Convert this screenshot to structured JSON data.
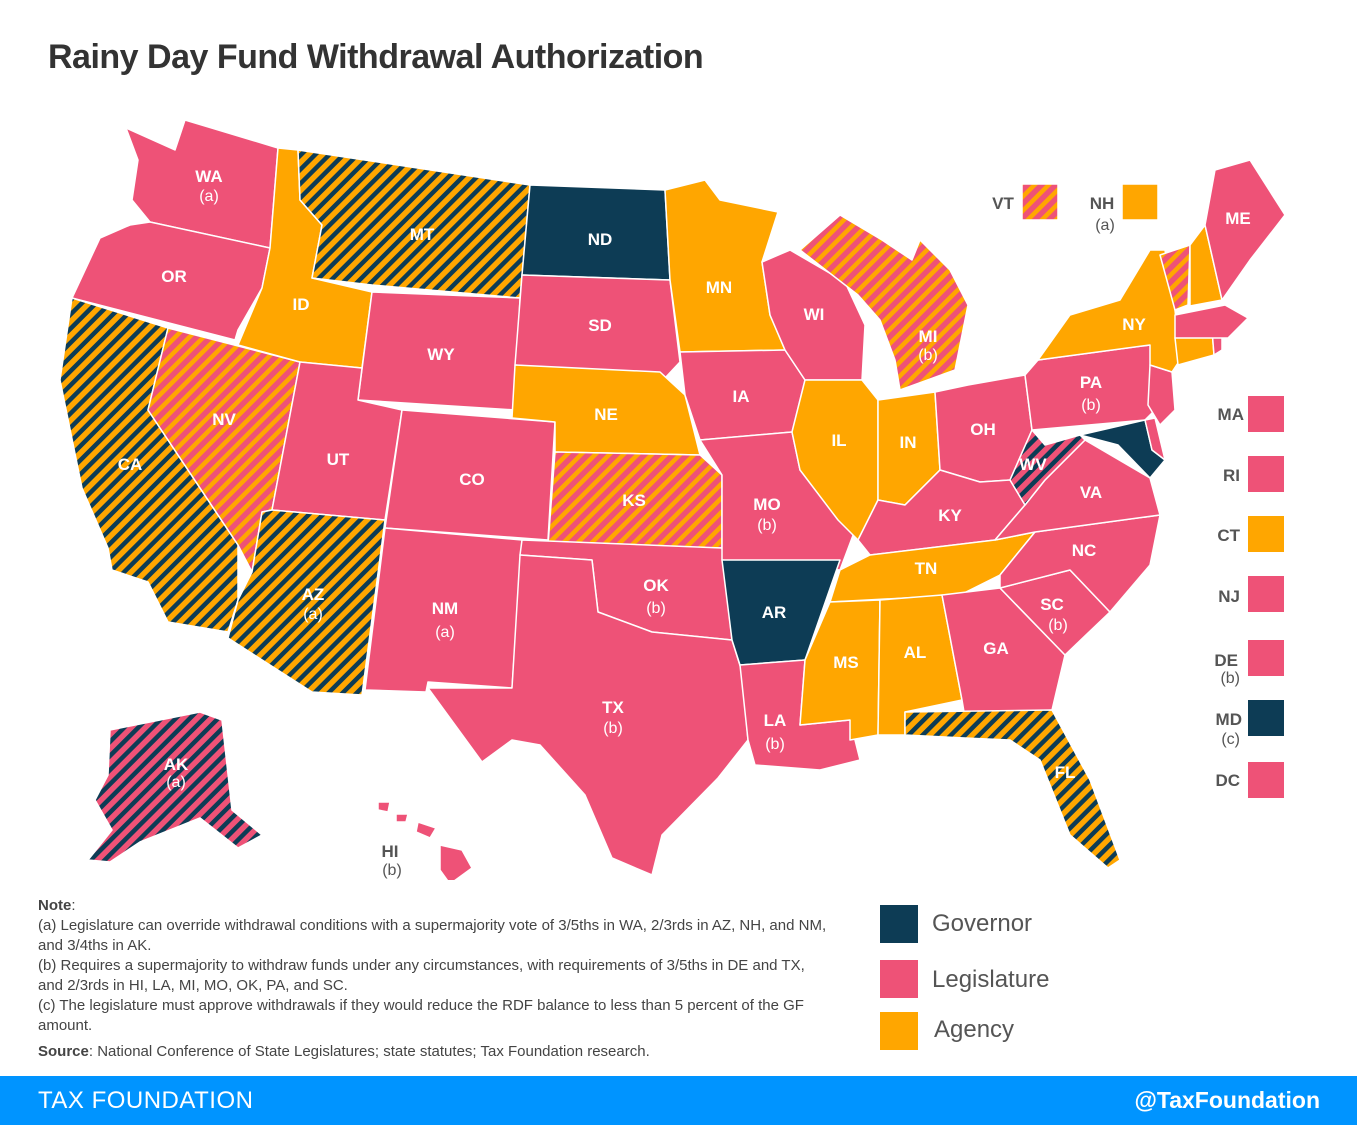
{
  "title": "Rainy Day Fund Withdrawal Authorization",
  "colors": {
    "governor": "#0d3c55",
    "legislature": "#ee5277",
    "agency": "#ffa600",
    "agency_legislature_stripe": "#ffa600/#ee5277",
    "governor_agency_stripe": "#0d3c55/#ffa600",
    "governor_legislature_stripe": "#0d3c55/#ee5277",
    "footer": "#0094ff"
  },
  "map_states": [
    {
      "code": "WA",
      "note": "(a)",
      "category": "legislature"
    },
    {
      "code": "OR",
      "note": "",
      "category": "legislature"
    },
    {
      "code": "CA",
      "note": "",
      "category": "governor-agency"
    },
    {
      "code": "NV",
      "note": "",
      "category": "agency-legislature"
    },
    {
      "code": "ID",
      "note": "",
      "category": "agency"
    },
    {
      "code": "MT",
      "note": "",
      "category": "governor-agency"
    },
    {
      "code": "WY",
      "note": "",
      "category": "legislature"
    },
    {
      "code": "UT",
      "note": "",
      "category": "legislature"
    },
    {
      "code": "AZ",
      "note": "(a)",
      "category": "governor-agency"
    },
    {
      "code": "CO",
      "note": "",
      "category": "legislature"
    },
    {
      "code": "NM",
      "note": "(a)",
      "category": "legislature"
    },
    {
      "code": "ND",
      "note": "",
      "category": "governor"
    },
    {
      "code": "SD",
      "note": "",
      "category": "legislature"
    },
    {
      "code": "NE",
      "note": "",
      "category": "agency"
    },
    {
      "code": "KS",
      "note": "",
      "category": "agency-legislature"
    },
    {
      "code": "OK",
      "note": "(b)",
      "category": "legislature"
    },
    {
      "code": "TX",
      "note": "(b)",
      "category": "legislature"
    },
    {
      "code": "MN",
      "note": "",
      "category": "agency"
    },
    {
      "code": "IA",
      "note": "",
      "category": "legislature"
    },
    {
      "code": "MO",
      "note": "(b)",
      "category": "legislature"
    },
    {
      "code": "AR",
      "note": "",
      "category": "governor"
    },
    {
      "code": "LA",
      "note": "(b)",
      "category": "legislature"
    },
    {
      "code": "WI",
      "note": "",
      "category": "legislature"
    },
    {
      "code": "IL",
      "note": "",
      "category": "agency"
    },
    {
      "code": "MI",
      "note": "(b)",
      "category": "agency-legislature"
    },
    {
      "code": "IN",
      "note": "",
      "category": "agency"
    },
    {
      "code": "OH",
      "note": "",
      "category": "legislature"
    },
    {
      "code": "KY",
      "note": "",
      "category": "legislature"
    },
    {
      "code": "TN",
      "note": "",
      "category": "agency"
    },
    {
      "code": "MS",
      "note": "",
      "category": "agency"
    },
    {
      "code": "AL",
      "note": "",
      "category": "agency"
    },
    {
      "code": "GA",
      "note": "",
      "category": "legislature"
    },
    {
      "code": "FL",
      "note": "",
      "category": "governor-agency"
    },
    {
      "code": "SC",
      "note": "(b)",
      "category": "legislature"
    },
    {
      "code": "NC",
      "note": "",
      "category": "legislature"
    },
    {
      "code": "VA",
      "note": "",
      "category": "legislature"
    },
    {
      "code": "WV",
      "note": "",
      "category": "governor-legislature"
    },
    {
      "code": "PA",
      "note": "(b)",
      "category": "legislature"
    },
    {
      "code": "NY",
      "note": "",
      "category": "agency"
    },
    {
      "code": "ME",
      "note": "",
      "category": "legislature"
    },
    {
      "code": "AK",
      "note": "(a)",
      "category": "governor-legislature"
    },
    {
      "code": "HI",
      "note": "(b)",
      "category": "legislature"
    }
  ],
  "callouts": [
    {
      "code": "VT",
      "note": "",
      "category": "agency-legislature"
    },
    {
      "code": "NH",
      "note": "(a)",
      "category": "agency"
    }
  ],
  "side_states": [
    {
      "code": "MA",
      "note": "",
      "category": "legislature"
    },
    {
      "code": "RI",
      "note": "",
      "category": "legislature"
    },
    {
      "code": "CT",
      "note": "",
      "category": "agency"
    },
    {
      "code": "NJ",
      "note": "",
      "category": "legislature"
    },
    {
      "code": "DE",
      "note": "(b)",
      "category": "legislature"
    },
    {
      "code": "MD",
      "note": "(c)",
      "category": "governor"
    },
    {
      "code": "DC",
      "note": "",
      "category": "legislature"
    }
  ],
  "legend": [
    {
      "label": "Governor",
      "category": "governor"
    },
    {
      "label": "Legislature",
      "category": "legislature"
    },
    {
      "label": "Agency",
      "category": "agency"
    }
  ],
  "notes": {
    "heading": "Note",
    "a": "(a) Legislature can override withdrawal conditions with a supermajority vote of 3/5ths in WA, 2/3rds in AZ, NH, and NM, and 3/4ths in AK.",
    "b": "(b) Requires a supermajority to withdraw funds under any circumstances, with requirements of 3/5ths in DE and TX, and 2/3rds in HI, LA, MI, MO, OK, PA, and SC.",
    "c": "(c) The legislature must approve withdrawals if they would reduce the RDF balance to less than 5 percent of the GF amount."
  },
  "source": {
    "label": "Source",
    "text": ": National Conference of State Legislatures; state statutes; Tax Foundation research."
  },
  "footer": {
    "brand": "TAX FOUNDATION",
    "handle": "@TaxFoundation"
  }
}
